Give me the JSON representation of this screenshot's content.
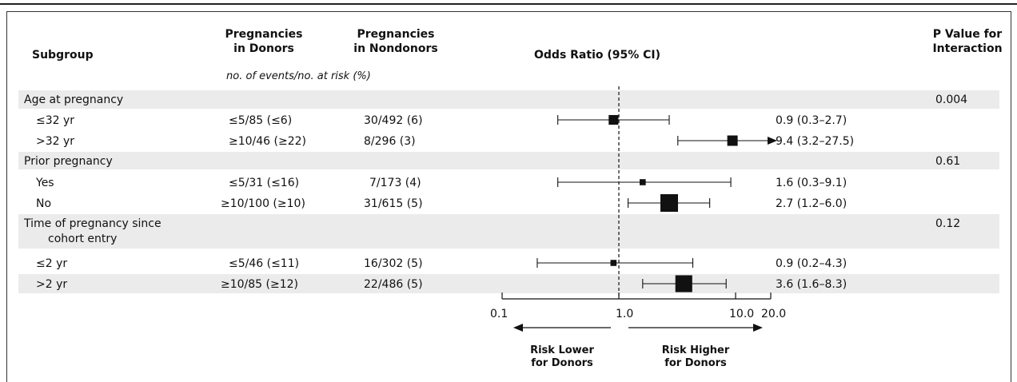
{
  "header": {
    "subgroup": "Subgroup",
    "donors_l1": "Pregnancies",
    "donors_l2": "in Donors",
    "nondonors_l1": "Pregnancies",
    "nondonors_l2": "in Nondonors",
    "or": "Odds Ratio (95% CI)",
    "p_l1": "P Value for",
    "p_l2": "Interaction",
    "units": "no. of events/no. at risk (%)"
  },
  "rows": [
    {
      "label": "Age at pregnancy",
      "group": true,
      "p": "0.004"
    },
    {
      "label": "≤32 yr",
      "donors": "≤5/85 (≤6)",
      "nondonors": "30/492 (6)",
      "ci": "0.9 (0.3–2.7)"
    },
    {
      "label": ">32 yr",
      "donors": "≥10/46 (≥22)",
      "nondonors": "8/296 (3)",
      "ci": "9.4 (3.2–27.5)"
    },
    {
      "label": "Prior pregnancy",
      "group": true,
      "p": "0.61"
    },
    {
      "label": "Yes",
      "donors": "≤5/31 (≤16)",
      "nondonors": "7/173 (4)",
      "ci": "1.6 (0.3–9.1)"
    },
    {
      "label": "No",
      "donors": "≥10/100 (≥10)",
      "nondonors": "31/615 (5)",
      "ci": "2.7 (1.2–6.0)"
    },
    {
      "label": "Time of pregnancy since",
      "label2": "cohort entry",
      "group": true,
      "p": "0.12"
    },
    {
      "label": "≤2 yr",
      "donors": "≤5/46 (≤11)",
      "nondonors": "16/302 (5)",
      "ci": "0.9 (0.2–4.3)"
    },
    {
      "label": ">2 yr",
      "donors": "≥10/85 (≥12)",
      "nondonors": "22/486 (5)",
      "ci": "3.6 (1.6–8.3)"
    }
  ],
  "chart_data": {
    "type": "scatter",
    "x_scale": "log",
    "xlim": [
      0.1,
      20.0
    ],
    "reference_line": 1.0,
    "ticks": [
      0.1,
      1.0,
      10.0,
      20.0
    ],
    "tick_labels": [
      "0.1",
      "1.0",
      "10.0",
      "20.0"
    ],
    "arrow_left": "Risk Lower for Donors",
    "arrow_right": "Risk Higher for Donors",
    "arrow_left_l1": "Risk Lower",
    "arrow_left_l2": "for Donors",
    "arrow_right_l1": "Risk Higher",
    "arrow_right_l2": "for Donors",
    "points": [
      {
        "row": 1,
        "or": 0.9,
        "lo": 0.3,
        "hi": 2.7,
        "weight": 0.45
      },
      {
        "row": 2,
        "or": 9.4,
        "lo": 3.2,
        "hi": 27.5,
        "weight": 0.5
      },
      {
        "row": 4,
        "or": 1.6,
        "lo": 0.3,
        "hi": 9.1,
        "weight": 0.2
      },
      {
        "row": 5,
        "or": 2.7,
        "lo": 1.2,
        "hi": 6.0,
        "weight": 1.0
      },
      {
        "row": 7,
        "or": 0.9,
        "lo": 0.2,
        "hi": 4.3,
        "weight": 0.2
      },
      {
        "row": 8,
        "or": 3.6,
        "lo": 1.6,
        "hi": 8.3,
        "weight": 0.95
      }
    ]
  }
}
